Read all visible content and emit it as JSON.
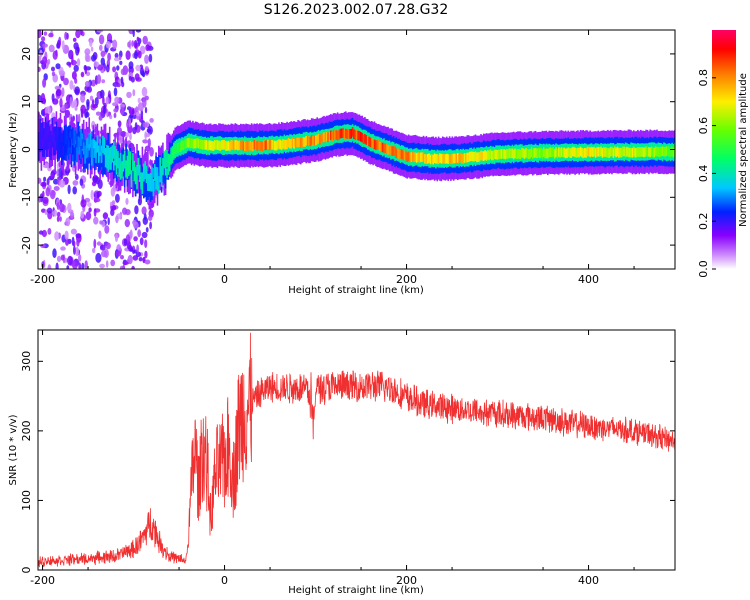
{
  "title": "S126.2023.002.07.28.G32",
  "chart_data": [
    {
      "type": "heatmap",
      "xlabel": "Height of straight line (km)",
      "ylabel": "Frequency (Hz)",
      "xlim": [
        -205,
        495
      ],
      "ylim": [
        -25,
        25
      ],
      "xticks": [
        -200,
        0,
        200,
        400
      ],
      "yticks": [
        -20,
        -10,
        0,
        10,
        20
      ],
      "colorbar": {
        "label": "Normalized spectral amplitude",
        "ticks": [
          "0.0",
          "0.2",
          "0.4",
          "0.6",
          "0.8"
        ],
        "range": [
          0,
          1
        ]
      },
      "ridge": {
        "x": [
          -190,
          -160,
          -140,
          -120,
          -105,
          -90,
          -80,
          -70,
          -55,
          -40,
          -20,
          0,
          20,
          40,
          60,
          80,
          100,
          120,
          140,
          160,
          180,
          200,
          230,
          260,
          300,
          350,
          400,
          450,
          495
        ],
        "freq": [
          2,
          1,
          0,
          -2,
          -4,
          -6,
          -7,
          -5,
          0,
          1.5,
          0.8,
          0.8,
          0.8,
          0.8,
          1,
          1.5,
          2,
          3,
          3.5,
          1.5,
          0,
          -1.5,
          -2,
          -1.8,
          -1,
          -0.7,
          -0.6,
          -0.5,
          -0.5
        ],
        "amplitude": [
          0.2,
          0.3,
          0.35,
          0.4,
          0.45,
          0.4,
          0.35,
          0.4,
          0.5,
          0.65,
          0.7,
          0.75,
          0.85,
          0.9,
          0.75,
          0.85,
          0.85,
          0.9,
          0.95,
          0.9,
          0.88,
          0.85,
          0.75,
          0.8,
          0.7,
          0.65,
          0.75,
          0.7,
          0.6
        ]
      }
    },
    {
      "type": "line",
      "xlabel": "Height of straight line (km)",
      "ylabel": "SNR (10 * v/v)",
      "xlim": [
        -205,
        495
      ],
      "ylim": [
        0,
        345
      ],
      "xticks": [
        -200,
        0,
        200,
        400
      ],
      "yticks": [
        0,
        100,
        200,
        300
      ],
      "series": [
        {
          "color": "#f03030",
          "x": [
            -205,
            -180,
            -150,
            -120,
            -100,
            -90,
            -85,
            -80,
            -75,
            -70,
            -60,
            -50,
            -42,
            -38,
            -35,
            -32,
            -28,
            -25,
            -20,
            -15,
            -10,
            -5,
            0,
            5,
            10,
            15,
            20,
            30,
            40,
            50,
            60,
            80,
            90,
            95,
            97,
            100,
            110,
            130,
            150,
            170,
            185,
            200,
            220,
            250,
            300,
            350,
            400,
            450,
            495
          ],
          "y": [
            12,
            14,
            16,
            20,
            30,
            45,
            60,
            70,
            52,
            35,
            20,
            15,
            14,
            80,
            150,
            170,
            110,
            180,
            160,
            70,
            140,
            150,
            155,
            180,
            130,
            200,
            225,
            240,
            255,
            262,
            262,
            262,
            262,
            240,
            185,
            262,
            263,
            264,
            264,
            264,
            260,
            248,
            238,
            232,
            225,
            218,
            207,
            200,
            185
          ]
        }
      ]
    }
  ]
}
